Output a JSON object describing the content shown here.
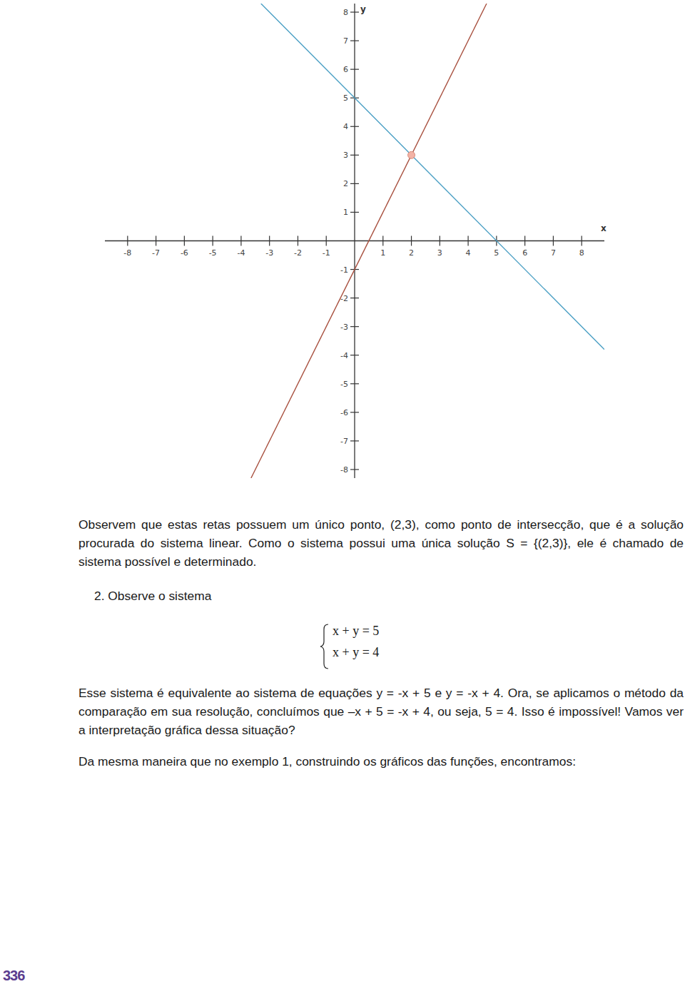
{
  "chart_data": {
    "type": "line",
    "x_label": "x",
    "y_label": "y",
    "xlim": [
      -8.8,
      8.8
    ],
    "ylim": [
      -8.3,
      8.3
    ],
    "xticks": [
      -8,
      -7,
      -6,
      -5,
      -4,
      -3,
      -2,
      -1,
      1,
      2,
      3,
      4,
      5,
      6,
      7,
      8
    ],
    "yticks": [
      8,
      7,
      6,
      5,
      4,
      3,
      2,
      1,
      -1,
      -2,
      -3,
      -4,
      -5,
      -6,
      -7,
      -8
    ],
    "grid": false,
    "series": [
      {
        "type": "line",
        "color": "#4a9fc4",
        "x": [
          -3.3,
          8.8
        ],
        "values": [
          8.3,
          -3.8
        ]
      },
      {
        "type": "line",
        "color": "#a8503f",
        "x": [
          -3.65,
          4.65
        ],
        "values": [
          -8.3,
          8.3
        ]
      },
      {
        "type": "scatter",
        "color": "#f2b3a6",
        "marker": "circle",
        "x": [
          2
        ],
        "values": [
          3
        ]
      }
    ]
  },
  "page": {
    "intro": "Observem que estas retas possuem um único ponto, (2,3), como ponto de intersecção, que é a solução procurada do sistema linear. Como o sistema possui uma única solução S = {(2,3)}, ele é chamado de sistema possível e determinado.",
    "item": "2. Observe o sistema",
    "system": [
      "x + y = 5",
      "x + y = 4"
    ],
    "explanation": "Esse sistema é equivalente ao sistema de equações y = -x + 5 e y = -x + 4. Ora, se aplicamos o método da comparação em sua resolução, concluímos que –x + 5 = -x + 4, ou seja, 5 = 4. Isso é impossível! Vamos ver a interpretação gráfica dessa situação?",
    "conclusion": "Da mesma maneira que no exemplo 1, construindo os gráficos das funções, encontramos:",
    "page_number": "336"
  }
}
